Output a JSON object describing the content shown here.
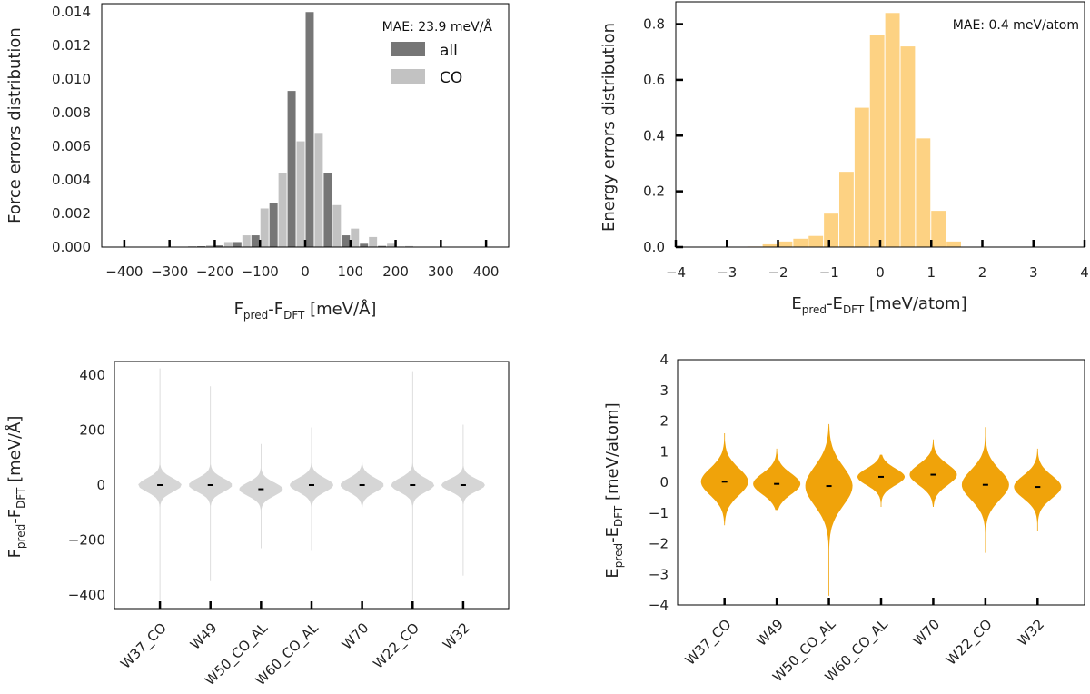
{
  "chart_data": [
    {
      "id": "force-hist",
      "type": "bar",
      "ylabel": "Force errors distribution",
      "xlabel": "F",
      "xlabel_sub1": "pred",
      "xlabel_mid": "-F",
      "xlabel_sub2": "DFT",
      "xlabel_unit": " [meV/Å]",
      "annotation": "MAE: 23.9 meV/Å",
      "xlim": [
        -450,
        450
      ],
      "ylim": [
        0,
        0.0145
      ],
      "xticks": [
        -400,
        -300,
        -200,
        -100,
        0,
        100,
        200,
        300,
        400
      ],
      "xtick_labels": [
        "−400",
        "−300",
        "−200",
        "−100",
        "0",
        "100",
        "200",
        "300",
        "400"
      ],
      "yticks": [
        0,
        0.002,
        0.004,
        0.006,
        0.008,
        0.01,
        0.012,
        0.014
      ],
      "ytick_labels": [
        "0.000",
        "0.002",
        "0.004",
        "0.006",
        "0.008",
        "0.010",
        "0.012",
        "0.014"
      ],
      "bin_width": 20,
      "series": [
        {
          "name": "all",
          "color": "#767676",
          "bin_centers": [
            -270,
            -230,
            -190,
            -150,
            -110,
            -70,
            -30,
            10,
            50,
            90,
            130,
            170,
            210
          ],
          "values": [
            2e-05,
            5e-05,
            0.0001,
            0.0003,
            0.0007,
            0.0026,
            0.0093,
            0.014,
            0.0044,
            0.0007,
            0.0002,
            7e-05,
            3e-05
          ]
        },
        {
          "name": "CO",
          "color": "#c2c2c2",
          "bin_centers": [
            -250,
            -210,
            -170,
            -130,
            -90,
            -50,
            -10,
            30,
            70,
            110,
            150,
            190,
            230
          ],
          "values": [
            5e-05,
            0.0001,
            0.0003,
            0.0007,
            0.0023,
            0.0044,
            0.0063,
            0.0068,
            0.0025,
            0.0011,
            0.0006,
            0.0002,
            6e-05
          ]
        }
      ]
    },
    {
      "id": "energy-hist",
      "type": "bar",
      "ylabel": "Energy errors distribution",
      "xlabel": "E",
      "xlabel_sub1": "pred",
      "xlabel_mid": "-E",
      "xlabel_sub2": "DFT",
      "xlabel_unit": " [meV/atom]",
      "annotation": "MAE: 0.4 meV/atom",
      "xlim": [
        -4,
        4
      ],
      "ylim": [
        0,
        0.88
      ],
      "xticks": [
        -4,
        -3,
        -2,
        -1,
        0,
        1,
        2,
        3,
        4
      ],
      "xtick_labels": [
        "−4",
        "−3",
        "−2",
        "−1",
        "0",
        "1",
        "2",
        "3",
        "4"
      ],
      "yticks": [
        0,
        0.2,
        0.4,
        0.6,
        0.8
      ],
      "ytick_labels": [
        "0.0",
        "0.2",
        "0.4",
        "0.6",
        "0.8"
      ],
      "color": "#fdd283",
      "bin_edges": [
        -2.6,
        -2.3,
        -2.0,
        -1.7,
        -1.4,
        -1.1,
        -0.8,
        -0.5,
        -0.2,
        0.1,
        0.4,
        0.7,
        1.0,
        1.3
      ],
      "values": [
        0.002,
        0.01,
        0.02,
        0.03,
        0.04,
        0.12,
        0.27,
        0.5,
        0.76,
        0.84,
        0.72,
        0.39,
        0.13,
        0.02
      ]
    },
    {
      "id": "force-violin",
      "type": "violin",
      "ylabel": "F",
      "ylabel_sub1": "pred",
      "ylabel_mid": "-F",
      "ylabel_sub2": "DFT",
      "ylabel_unit": " [meV/Å]",
      "color": "#d6d6d6",
      "ylim": [
        -450,
        450
      ],
      "yticks": [
        -400,
        -200,
        0,
        200,
        400
      ],
      "ytick_labels": [
        "−400",
        "−200",
        "0",
        "200",
        "400"
      ],
      "categories": [
        "W37_CO",
        "W49",
        "W50_CO_AL",
        "W60_CO_AL",
        "W70",
        "W22_CO",
        "W32"
      ],
      "medians": [
        0,
        0,
        -15,
        0,
        0,
        0,
        0
      ],
      "min": [
        -420,
        -350,
        -230,
        -240,
        -300,
        -420,
        -330
      ],
      "max": [
        425,
        360,
        150,
        210,
        390,
        415,
        220
      ],
      "spread": [
        25,
        25,
        25,
        26,
        26,
        25,
        23
      ]
    },
    {
      "id": "energy-violin",
      "type": "violin",
      "ylabel": "E",
      "ylabel_sub1": "pred",
      "ylabel_mid": "-E",
      "ylabel_sub2": "DFT",
      "ylabel_unit": " [meV/atom]",
      "color": "#f0a30a",
      "ylim": [
        -4,
        4
      ],
      "yticks": [
        -4,
        -3,
        -2,
        -1,
        0,
        1,
        2,
        3,
        4
      ],
      "ytick_labels": [
        "−4",
        "−3",
        "−2",
        "−1",
        "0",
        "1",
        "2",
        "3",
        "4"
      ],
      "categories": [
        "W37_CO",
        "W49",
        "W50_CO_AL",
        "W60_CO_AL",
        "W70",
        "W22_CO",
        "W32"
      ],
      "medians": [
        0.02,
        -0.05,
        -0.12,
        0.18,
        0.25,
        -0.08,
        -0.15
      ],
      "min": [
        -1.4,
        -0.9,
        -3.7,
        -0.8,
        -0.8,
        -2.3,
        -1.6
      ],
      "max": [
        1.6,
        1.1,
        1.9,
        0.9,
        1.4,
        1.8,
        1.1
      ],
      "spread": [
        0.45,
        0.35,
        0.65,
        0.28,
        0.35,
        0.5,
        0.38
      ]
    }
  ]
}
